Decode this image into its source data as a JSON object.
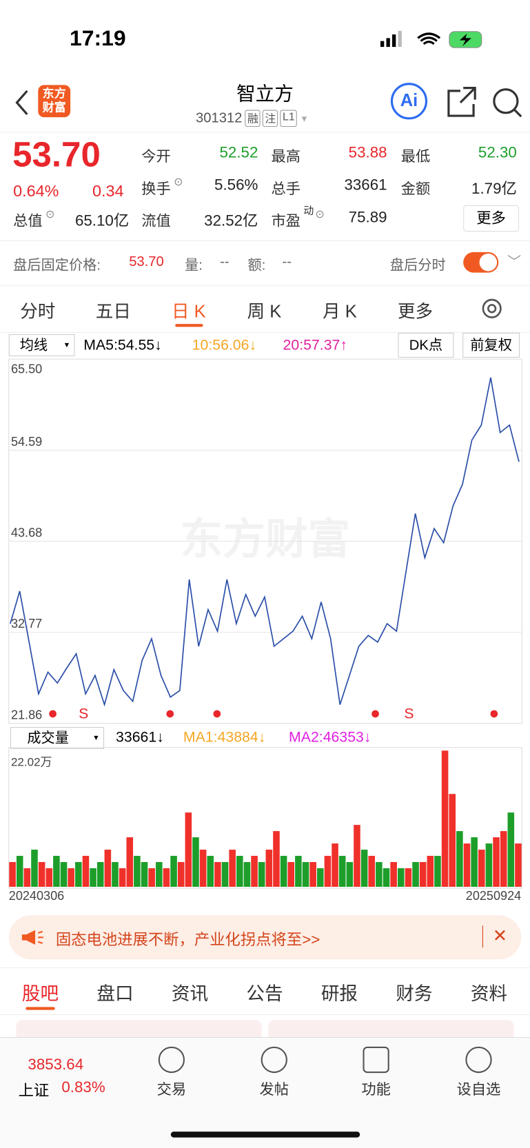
{
  "status": {
    "time": "17:19"
  },
  "header": {
    "logo": "东方财富",
    "title": "智立方",
    "code": "301312",
    "tags": [
      "融",
      "注",
      "L1"
    ],
    "ai": "Ai"
  },
  "quote": {
    "price": "53.70",
    "change_pct": "0.64%",
    "change": "0.34",
    "color": "#e8262b",
    "stats": [
      {
        "label": "今开",
        "value": "52.52",
        "color": "#1d9e2a"
      },
      {
        "label": "最高",
        "value": "53.88",
        "color": "#e8262b"
      },
      {
        "label": "最低",
        "value": "52.30",
        "color": "#1d9e2a"
      },
      {
        "label": "换手",
        "value": "5.56%",
        "color": "#222"
      },
      {
        "label": "总手",
        "value": "33661",
        "color": "#222"
      },
      {
        "label": "金额",
        "value": "1.79亿",
        "color": "#222"
      },
      {
        "label": "总值",
        "value": "65.10亿",
        "color": "#222"
      },
      {
        "label": "流值",
        "value": "32.52亿",
        "color": "#222"
      },
      {
        "label": "市盈",
        "value": "75.89",
        "color": "#222"
      }
    ],
    "pe_sup": "动",
    "more": "更多"
  },
  "after_hours": {
    "label": "盘后固定价格:",
    "price": "53.70",
    "vol_label": "量:",
    "vol": "--",
    "amt_label": "额:",
    "amt": "--",
    "link": "盘后分时"
  },
  "tabs": {
    "items": [
      "分时",
      "五日",
      "日 K",
      "周 K",
      "月 K",
      "更多"
    ],
    "active": 2
  },
  "indicators": {
    "selector": "均线",
    "ma5": "MA5:54.55↓",
    "ma10": "10:56.06↓",
    "ma20": "20:57.37↑",
    "dk": "DK点",
    "adjust": "前复权"
  },
  "kline": {
    "watermark": "东方财富",
    "ylim": [
      21.86,
      65.5
    ],
    "yticks": [
      {
        "value": 21.86,
        "label": "21.86"
      },
      {
        "value": 32.77,
        "label": "32.77"
      },
      {
        "value": 43.68,
        "label": "43.68"
      },
      {
        "value": 54.59,
        "label": "54.59"
      },
      {
        "value": 65.5,
        "label": "65.50"
      }
    ],
    "color": "#2b4fa8",
    "grid": true,
    "signals": [
      "S",
      "S"
    ],
    "values": [
      33.8,
      37.7,
      31.6,
      25.4,
      28.0,
      26.7,
      28.5,
      30.2,
      25.4,
      27.6,
      24.1,
      28.3,
      25.8,
      24.5,
      29.4,
      32.0,
      27.6,
      25.0,
      25.8,
      39.1,
      31.1,
      35.5,
      32.9,
      39.1,
      33.8,
      37.3,
      34.7,
      37.0,
      31.1,
      32.0,
      32.9,
      34.7,
      32.0,
      36.4,
      32.0,
      24.1,
      27.6,
      31.1,
      32.4,
      31.6,
      33.8,
      32.9,
      40.0,
      47.0,
      41.7,
      45.2,
      43.5,
      47.9,
      50.5,
      55.8,
      57.6,
      63.3,
      56.7,
      57.6,
      53.2
    ]
  },
  "volume": {
    "selector": "成交量",
    "last": "33661↓",
    "ma1": "MA1:43884↓",
    "ma2": "MA2:46353↓",
    "max_label": "22.02万",
    "ylim": [
      0,
      22.02
    ],
    "up_color": "#f0302a",
    "down_color": "#1d9e2a",
    "values": [
      4,
      5,
      3,
      6,
      4,
      3,
      5,
      4,
      3,
      4,
      5,
      3,
      4,
      6,
      4,
      3,
      8,
      5,
      4,
      3,
      4,
      3,
      5,
      4,
      12,
      8,
      6,
      5,
      4,
      4,
      6,
      5,
      4,
      5,
      4,
      6,
      9,
      5,
      4,
      5,
      4,
      4,
      3,
      5,
      7,
      5,
      4,
      10,
      6,
      5,
      4,
      3,
      4,
      3,
      3,
      4,
      4,
      5,
      5,
      22,
      15,
      9,
      7,
      8,
      6,
      7,
      8,
      9,
      12,
      7
    ],
    "up": [
      true,
      false,
      true,
      false,
      true,
      true,
      false,
      false,
      true,
      false,
      true,
      false,
      false,
      true,
      false,
      true,
      true,
      false,
      false,
      true,
      false,
      true,
      false,
      true,
      true,
      false,
      true,
      false,
      true,
      false,
      true,
      false,
      false,
      true,
      false,
      true,
      true,
      false,
      true,
      false,
      false,
      true,
      false,
      true,
      true,
      false,
      false,
      true,
      false,
      true,
      false,
      false,
      true,
      false,
      true,
      false,
      true,
      true,
      false,
      true,
      true,
      false,
      true,
      false,
      true,
      false,
      true,
      true,
      false,
      true
    ],
    "start": "20240306",
    "end": "20250924"
  },
  "banner": {
    "text": "固态电池进展不断，产业化拐点将至>>"
  },
  "bottom_tabs": {
    "items": [
      "股吧",
      "盘口",
      "资讯",
      "公告",
      "研报",
      "财务",
      "资料"
    ],
    "active": 0
  },
  "footer": {
    "index_value": "3853.64",
    "index_name": "上证",
    "index_pct": "0.83%",
    "nav": [
      "交易",
      "发帖",
      "功能",
      "设自选"
    ]
  }
}
